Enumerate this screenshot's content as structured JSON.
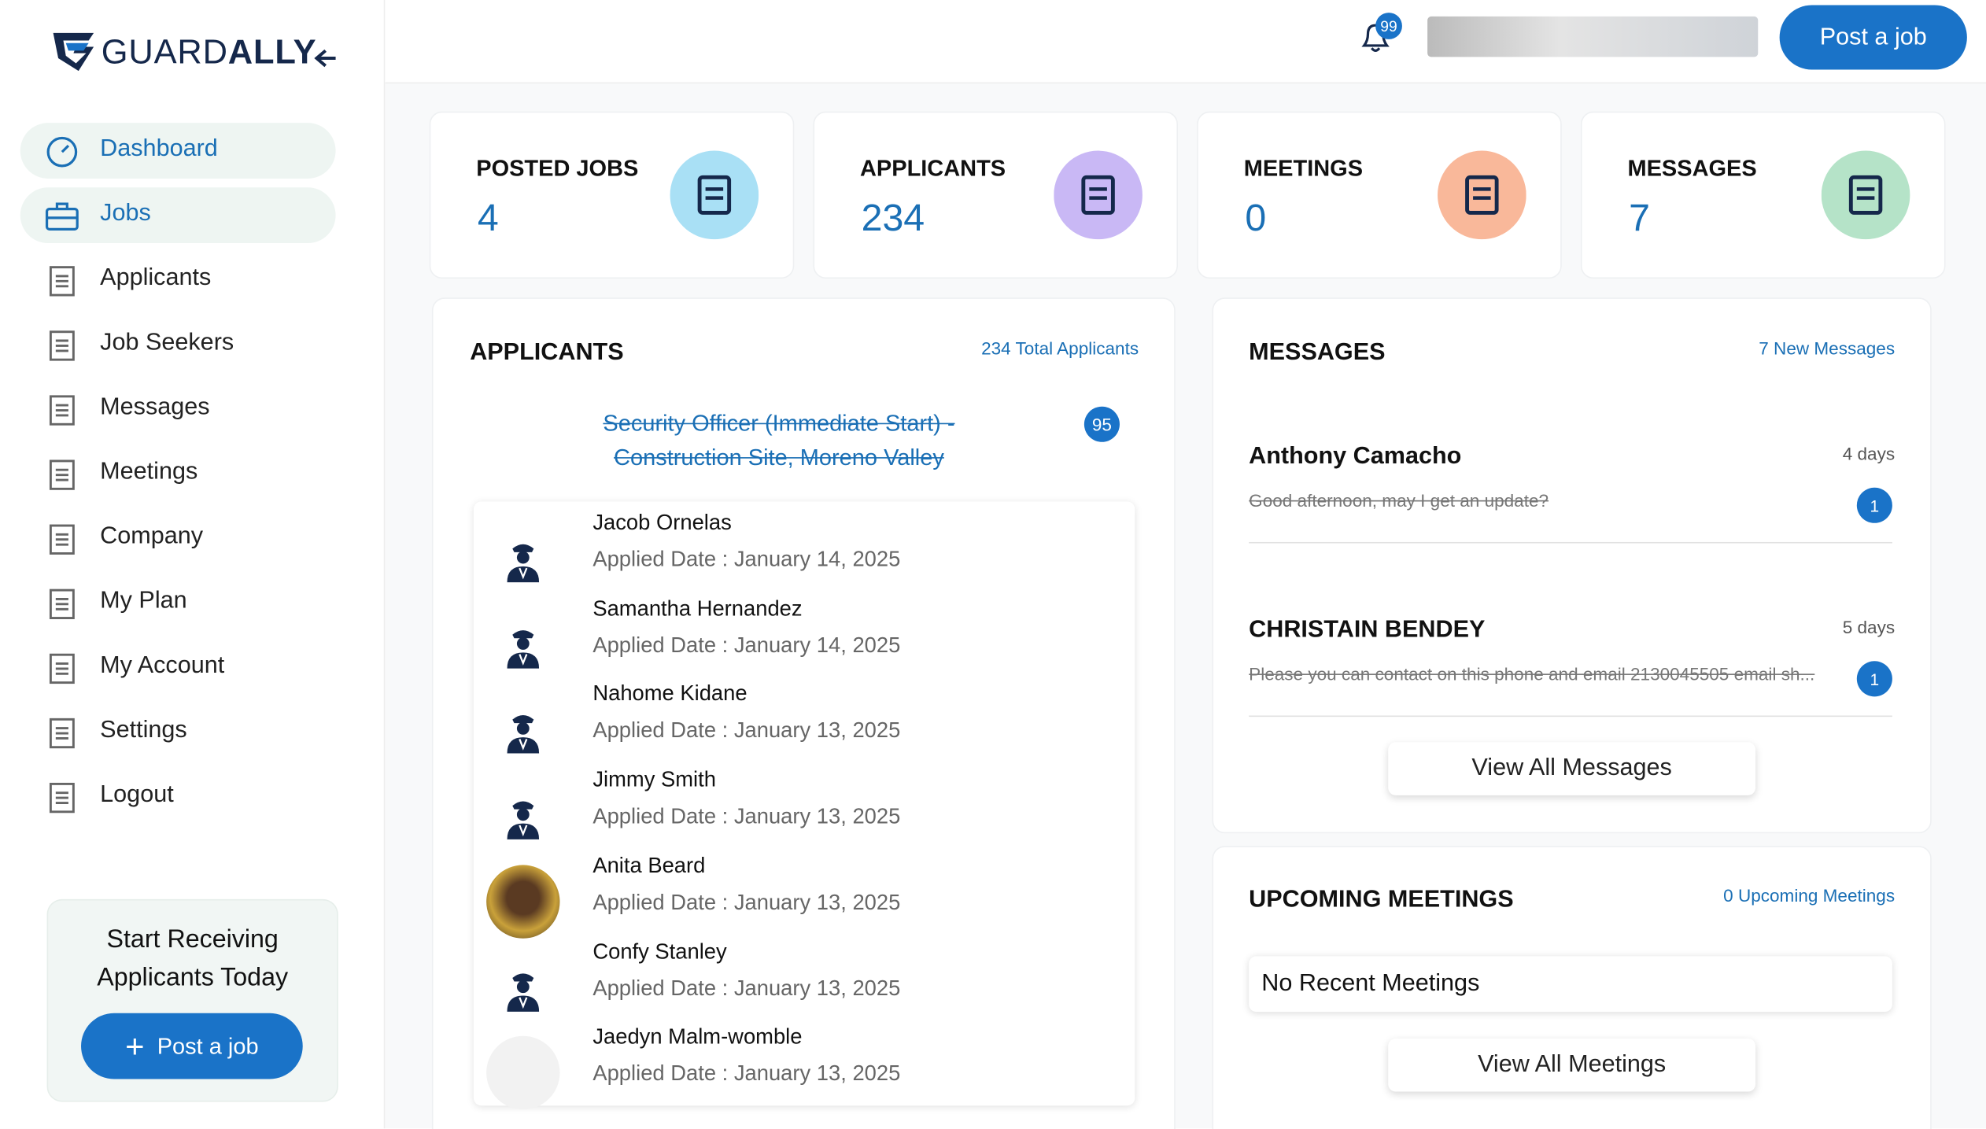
{
  "logo": {
    "prefix": "GUARD",
    "suffix": "ALLY"
  },
  "header": {
    "notifications": 99,
    "post_button": "Post a job"
  },
  "nav": [
    "Dashboard",
    "Jobs",
    "Applicants",
    "Job Seekers",
    "Messages",
    "Meetings",
    "Company",
    "My Plan",
    "My Account",
    "Settings",
    "Logout"
  ],
  "promo": {
    "line1": "Start Receiving",
    "line2": "Applicants Today",
    "button": "Post a job"
  },
  "stats": [
    {
      "label": "POSTED JOBS",
      "value": 4
    },
    {
      "label": "APPLICANTS",
      "value": 234
    },
    {
      "label": "MEETINGS",
      "value": 0
    },
    {
      "label": "MESSAGES",
      "value": 7
    }
  ],
  "applicants": {
    "title": "APPLICANTS",
    "link": "234 Total Applicants",
    "job_line1": "Security Officer (Immediate Start) -",
    "job_line2": "Construction Site, Moreno Valley",
    "job_count": 95,
    "rows": [
      [
        "Jacob Ornelas",
        "Applied Date : January 14, 2025"
      ],
      [
        "Samantha Hernandez",
        "Applied Date : January 14, 2025"
      ],
      [
        "Nahome Kidane",
        "Applied Date : January 13, 2025"
      ],
      [
        "Jimmy Smith",
        "Applied Date : January 13, 2025"
      ],
      [
        "Anita Beard",
        "Applied Date : January 13, 2025"
      ],
      [
        "Confy Stanley",
        "Applied Date : January 13, 2025"
      ],
      [
        "Jaedyn Malm-womble",
        "Applied Date : January 13, 2025"
      ]
    ]
  },
  "messages": {
    "title": "MESSAGES",
    "link": "7 New Messages",
    "button": "View All Messages",
    "items": [
      {
        "name": "Anthony Camacho",
        "time": "4 days",
        "preview": "Good afternoon, may I get an update?",
        "unread": 1
      },
      {
        "name": "CHRISTAIN BENDEY",
        "time": "5 days",
        "preview": "Please you can contact on this phone and email 2130045505 email sh...",
        "unread": 1
      }
    ]
  },
  "meetings": {
    "title": "UPCOMING MEETINGS",
    "link": "0 Upcoming Meetings",
    "empty": "No Recent Meetings",
    "button": "View All Meetings"
  }
}
